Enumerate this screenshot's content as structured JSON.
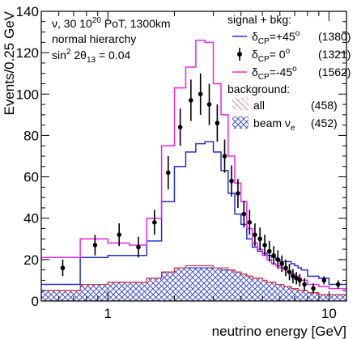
{
  "chart_data": {
    "type": "line",
    "ylabel": "Events/0.25 GeV",
    "xlabel": "neutrino energy [GeV]",
    "xscale": "log",
    "xlim": [
      0.5,
      12.0
    ],
    "ylim": [
      0,
      140
    ],
    "y_ticks": [
      0,
      20,
      40,
      60,
      80,
      100,
      120,
      140
    ],
    "x_ticks": [
      {
        "value": 1,
        "label": "1"
      },
      {
        "value": 10,
        "label": "10"
      }
    ],
    "info_lines": [
      {
        "text": "ν,  30 10",
        "sup": "20",
        "tail": " PoT, 1300km"
      },
      {
        "text": "normal hierarchy"
      },
      {
        "text": "sin",
        "sup": "2",
        "tail": " 2θ",
        "sub": "13",
        "tail2": " = 0.04"
      }
    ],
    "legend": {
      "header_signal": "signal + bkg:",
      "header_background": "background:",
      "entries": [
        {
          "id": "p45",
          "label_main": "δ",
          "label_sub": "CP",
          "label_rest": "=+45",
          "label_sup": "o",
          "count": "(1380)",
          "color": "#1f2fd6",
          "style": "line"
        },
        {
          "id": "zero",
          "label_main": "δ",
          "label_sub": "CP",
          "label_rest": "= 0",
          "label_sup": "o",
          "count": "(1321)",
          "color": "#000000",
          "style": "marker"
        },
        {
          "id": "m45",
          "label_main": "δ",
          "label_sub": "CP",
          "label_rest": "=-45",
          "label_sup": "o",
          "count": "(1562)",
          "color": "#ee22ee",
          "style": "line"
        },
        {
          "id": "all",
          "label_main": "all",
          "count": "(458)",
          "color": "#e8332a",
          "style": "hatch-red"
        },
        {
          "id": "beam",
          "label_main": "beam ν",
          "label_sub": "e",
          "count": "(452)",
          "color": "#2a3bd8",
          "style": "hatch-blue"
        }
      ]
    },
    "bin_edges": [
      0.5,
      0.75,
      1.0,
      1.25,
      1.5,
      1.75,
      2.0,
      2.25,
      2.5,
      2.75,
      3.0,
      3.25,
      3.5,
      3.75,
      4.0,
      4.25,
      4.5,
      4.75,
      5.0,
      5.25,
      5.5,
      5.75,
      6.0,
      6.25,
      6.5,
      6.75,
      7.0,
      7.25,
      7.5,
      8.0,
      9.0,
      10.0,
      12.0
    ],
    "series": [
      {
        "id": "m45",
        "color": "#ee22ee",
        "values": [
          21,
          30,
          28,
          27,
          40,
          75,
          103,
          113,
          126,
          125,
          105,
          90,
          70,
          57,
          48,
          35,
          28,
          25,
          22,
          20,
          18,
          17,
          16,
          15,
          14,
          13,
          12,
          11,
          10,
          8,
          7,
          6
        ]
      },
      {
        "id": "p45",
        "color": "#1f2fd6",
        "values": [
          8,
          21,
          22,
          22,
          29,
          48,
          65,
          72,
          76,
          77,
          72,
          63,
          52,
          42,
          37,
          30,
          26,
          24,
          23,
          22,
          21,
          20,
          19,
          19,
          19,
          18,
          17,
          16,
          15,
          12,
          11,
          8
        ]
      },
      {
        "id": "all",
        "color": "#e8332a",
        "values": [
          5,
          8,
          9,
          9,
          11,
          14,
          16,
          17,
          17,
          17,
          16,
          16,
          15,
          14,
          13,
          12,
          11,
          11,
          10,
          9,
          9,
          8,
          8,
          7,
          7,
          6,
          6,
          5,
          5,
          4,
          3,
          3
        ]
      },
      {
        "id": "beam",
        "color": "#2a3bd8",
        "values": [
          5,
          8,
          9,
          9,
          11,
          14,
          16,
          16,
          16,
          16,
          16,
          15,
          15,
          14,
          13,
          12,
          11,
          11,
          10,
          9,
          9,
          8,
          8,
          7,
          7,
          6,
          6,
          5,
          5,
          4,
          3,
          3
        ]
      }
    ],
    "points": [
      {
        "x": 0.625,
        "y": 16,
        "err": 4
      },
      {
        "x": 0.875,
        "y": 27,
        "err": 5
      },
      {
        "x": 1.125,
        "y": 32,
        "err": 5.5
      },
      {
        "x": 1.375,
        "y": 26,
        "err": 5
      },
      {
        "x": 1.625,
        "y": 38,
        "err": 6
      },
      {
        "x": 1.875,
        "y": 62,
        "err": 8
      },
      {
        "x": 2.125,
        "y": 84,
        "err": 9
      },
      {
        "x": 2.375,
        "y": 97,
        "err": 10
      },
      {
        "x": 2.625,
        "y": 100,
        "err": 10
      },
      {
        "x": 2.875,
        "y": 95,
        "err": 10
      },
      {
        "x": 3.125,
        "y": 86,
        "err": 9
      },
      {
        "x": 3.375,
        "y": 70,
        "err": 8
      },
      {
        "x": 3.625,
        "y": 58,
        "err": 7.5
      },
      {
        "x": 3.875,
        "y": 52,
        "err": 7
      },
      {
        "x": 4.125,
        "y": 42,
        "err": 6.5
      },
      {
        "x": 4.375,
        "y": 38,
        "err": 6
      },
      {
        "x": 4.625,
        "y": 32,
        "err": 5.5
      },
      {
        "x": 4.875,
        "y": 30,
        "err": 5.5
      },
      {
        "x": 5.125,
        "y": 27,
        "err": 5
      },
      {
        "x": 5.375,
        "y": 24,
        "err": 5
      },
      {
        "x": 5.625,
        "y": 22,
        "err": 4.5
      },
      {
        "x": 5.875,
        "y": 20,
        "err": 4.5
      },
      {
        "x": 6.125,
        "y": 18,
        "err": 4
      },
      {
        "x": 6.375,
        "y": 16,
        "err": 4
      },
      {
        "x": 6.625,
        "y": 14,
        "err": 4
      },
      {
        "x": 6.875,
        "y": 12,
        "err": 3.5
      },
      {
        "x": 7.125,
        "y": 11,
        "err": 3
      },
      {
        "x": 7.375,
        "y": 10,
        "err": 3
      },
      {
        "x": 7.75,
        "y": 8,
        "err": 3
      },
      {
        "x": 8.5,
        "y": 6,
        "err": 2.5
      },
      {
        "x": 9.5,
        "y": 10,
        "err": 2
      },
      {
        "x": 11,
        "y": 8,
        "err": 2
      }
    ]
  }
}
